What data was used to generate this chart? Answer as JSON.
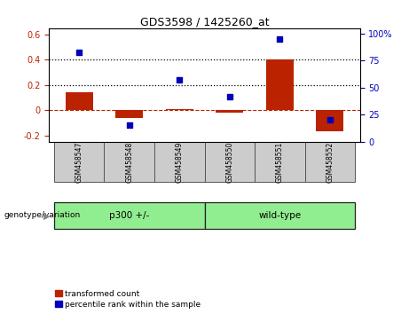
{
  "title": "GDS3598 / 1425260_at",
  "samples": [
    "GSM458547",
    "GSM458548",
    "GSM458549",
    "GSM458550",
    "GSM458551",
    "GSM458552"
  ],
  "bar_values": [
    0.14,
    -0.06,
    0.01,
    -0.02,
    0.4,
    -0.17
  ],
  "percentile_values": [
    83,
    15,
    57,
    42,
    95,
    20
  ],
  "bar_color": "#bb2200",
  "dot_color": "#0000bb",
  "ylim_left": [
    -0.25,
    0.65
  ],
  "ylim_right": [
    0,
    105
  ],
  "yticks_left": [
    -0.2,
    0.0,
    0.2,
    0.4,
    0.6
  ],
  "yticks_right": [
    0,
    25,
    50,
    75,
    100
  ],
  "ytick_labels_left": [
    "-0.2",
    "0",
    "0.2",
    "0.4",
    "0.6"
  ],
  "ytick_labels_right": [
    "0",
    "25",
    "50",
    "75",
    "100%"
  ],
  "hlines": [
    0.2,
    0.4
  ],
  "group_labels": [
    "p300 +/-",
    "wild-type"
  ],
  "group_ranges": [
    [
      0,
      2
    ],
    [
      3,
      5
    ]
  ],
  "sample_bg_color": "#cccccc",
  "group_bg_color": "#90ee90",
  "legend_labels": [
    "transformed count",
    "percentile rank within the sample"
  ],
  "genotype_label": "genotype/variation"
}
